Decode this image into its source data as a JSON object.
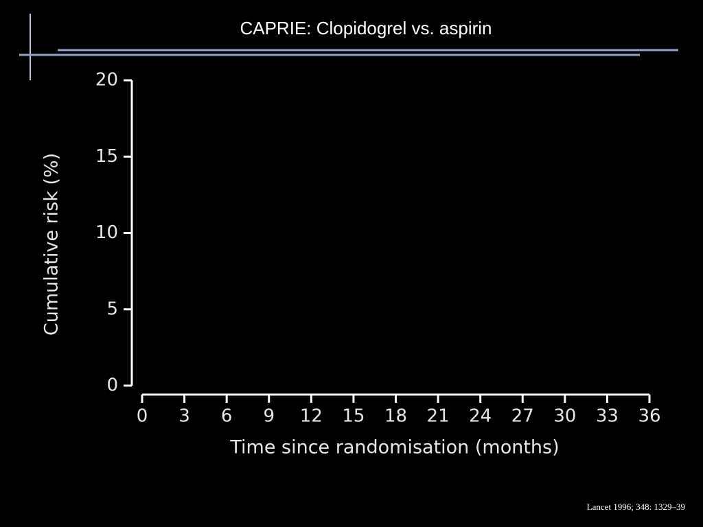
{
  "chart_data": {
    "type": "line",
    "title": "CAPRIE: Clopidogrel vs. aspirin",
    "x_label": "Time since randomisation (months)",
    "y_label": "Cumulative risk (%)",
    "xlim": [
      0,
      36
    ],
    "xticks": [
      0,
      3,
      6,
      9,
      12,
      15,
      18,
      21,
      24,
      27,
      30,
      33,
      36
    ],
    "ylim": [
      0,
      20
    ],
    "yticks": [
      0,
      5,
      10,
      15,
      20
    ],
    "source": "Lancet 1996; 348: 1329–39"
  }
}
